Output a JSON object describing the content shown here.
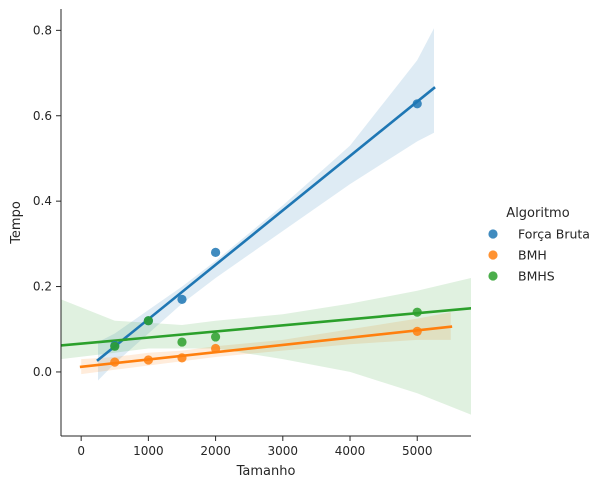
{
  "chart_data": {
    "type": "scatter",
    "xlabel": "Tamanho",
    "ylabel": "Tempo",
    "xlim": [
      -300,
      5800
    ],
    "ylim": [
      -0.15,
      0.85
    ],
    "xticks": [
      0,
      1000,
      2000,
      3000,
      4000,
      5000
    ],
    "yticks": [
      0.0,
      0.2,
      0.4,
      0.6,
      0.8
    ],
    "xtick_labels": [
      "0",
      "1000",
      "2000",
      "3000",
      "4000",
      "5000"
    ],
    "ytick_labels": [
      "0.0",
      "0.2",
      "0.4",
      "0.6",
      "0.8"
    ],
    "grid": false,
    "legend": {
      "title": "Algoritmo",
      "placement": "right-outside",
      "entries": [
        "Força Bruta",
        "BMH",
        "BMHS"
      ]
    },
    "series": [
      {
        "name": "Força Bruta",
        "color": "#1f77b4",
        "points": [
          {
            "x": 500,
            "y": 0.062
          },
          {
            "x": 1000,
            "y": 0.12
          },
          {
            "x": 1500,
            "y": 0.17
          },
          {
            "x": 2000,
            "y": 0.28
          },
          {
            "x": 5000,
            "y": 0.628
          }
        ],
        "fit": {
          "x": [
            250,
            5250
          ],
          "y": [
            0.028,
            0.665
          ]
        },
        "band": {
          "x": [
            250,
            500,
            1000,
            1500,
            2000,
            3000,
            4000,
            5000,
            5250
          ],
          "lower": [
            -0.02,
            0.02,
            0.09,
            0.16,
            0.22,
            0.33,
            0.44,
            0.54,
            0.56
          ],
          "upper": [
            0.07,
            0.09,
            0.145,
            0.2,
            0.26,
            0.39,
            0.53,
            0.73,
            0.805
          ]
        }
      },
      {
        "name": "BMH",
        "color": "#ff7f0e",
        "points": [
          {
            "x": 500,
            "y": 0.023
          },
          {
            "x": 1000,
            "y": 0.028
          },
          {
            "x": 1500,
            "y": 0.033
          },
          {
            "x": 2000,
            "y": 0.055
          },
          {
            "x": 5000,
            "y": 0.095
          }
        ],
        "fit": {
          "x": [
            0,
            5500
          ],
          "y": [
            0.012,
            0.106
          ]
        },
        "band": {
          "x": [
            0,
            500,
            1000,
            1500,
            2000,
            3000,
            4000,
            5000,
            5500
          ],
          "lower": [
            -0.005,
            0.005,
            0.015,
            0.025,
            0.035,
            0.05,
            0.065,
            0.075,
            0.075
          ],
          "upper": [
            0.03,
            0.035,
            0.045,
            0.05,
            0.06,
            0.075,
            0.1,
            0.125,
            0.14
          ]
        }
      },
      {
        "name": "BMHS",
        "color": "#2ca02c",
        "points": [
          {
            "x": 500,
            "y": 0.06
          },
          {
            "x": 1000,
            "y": 0.12
          },
          {
            "x": 1500,
            "y": 0.07
          },
          {
            "x": 2000,
            "y": 0.082
          },
          {
            "x": 5000,
            "y": 0.14
          }
        ],
        "fit": {
          "x": [
            -300,
            5800
          ],
          "y": [
            0.062,
            0.149
          ]
        },
        "band": {
          "x": [
            -300,
            500,
            1000,
            1500,
            2000,
            3000,
            4000,
            5000,
            5800
          ],
          "lower": [
            0.03,
            0.045,
            0.055,
            0.055,
            0.055,
            0.03,
            0.0,
            -0.05,
            -0.1
          ],
          "upper": [
            0.17,
            0.12,
            0.115,
            0.11,
            0.12,
            0.135,
            0.16,
            0.19,
            0.22
          ]
        }
      }
    ]
  }
}
